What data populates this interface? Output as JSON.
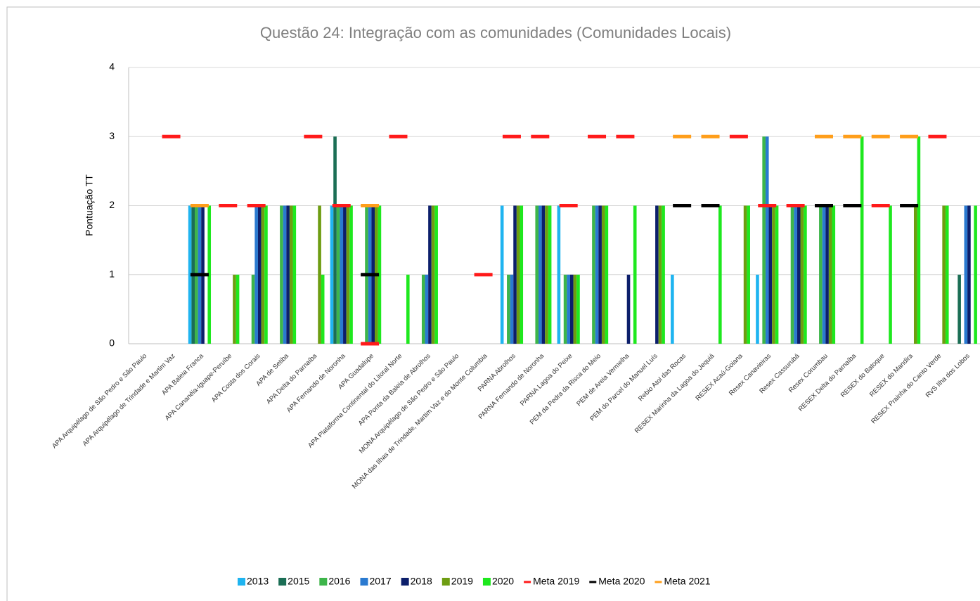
{
  "chart_data": {
    "type": "bar",
    "title": "Questão 24: Integração com as comunidades (Comunidades Locais)",
    "y_label": "Pontuação TT",
    "categories": [
      "APA Arquipélago de São Pedro e São Paulo",
      "APA Arquipélago de Trindade e Martim Vaz",
      "APA Baleia Franca",
      "APA Cananéia-Iguape-Peruíbe",
      "APA Costa dos Corais",
      "APA de Setiba",
      "APA Delta do Parnaíba",
      "APA Fernando de Noronha",
      "APA Guadalupe",
      "APA Plataforma Continental do Litoral Norte",
      "APA Ponta da Baleia de Abrolhos",
      "MONA Arquipélago de São Pedro e São Paulo",
      "MONA das Ilhas de Trindade, Martim Vaz e do Monte Columbia",
      "PARNA Abrolhos",
      "PARNA Fernando de Noronha",
      "PARNA Lagoa do Peixe",
      "PEM da Pedra da Risca do Meio",
      "PEM de Areia Vermelha",
      "PEM do Parcel do Manuel Luís",
      "Rebio Atol das Rocas",
      "RESEX Marinha da Lagoa do Jequiá",
      "RESEX Acaú-Goiana",
      "Resex Canavieiras",
      "Resex Cassurubá",
      "Resex Corumbau",
      "RESEX Delta do Parnaíba",
      "RESEX do Batoque",
      "RESEX do Mandira",
      "RESEX Prainha do Canto Verde",
      "RVS Ilha dos Lobos"
    ],
    "series": [
      {
        "name": "2013",
        "color": "#1fb4f0",
        "values": [
          null,
          null,
          2,
          null,
          null,
          null,
          null,
          2,
          null,
          null,
          null,
          null,
          null,
          2,
          null,
          2,
          null,
          null,
          null,
          1,
          null,
          null,
          1,
          null,
          null,
          null,
          null,
          null,
          null,
          null
        ]
      },
      {
        "name": "2015",
        "color": "#1b6e55",
        "values": [
          null,
          null,
          2,
          null,
          null,
          null,
          null,
          3,
          null,
          null,
          null,
          null,
          null,
          null,
          null,
          null,
          null,
          null,
          null,
          null,
          null,
          null,
          null,
          null,
          null,
          null,
          null,
          null,
          null,
          1
        ]
      },
      {
        "name": "2016",
        "color": "#3db54a",
        "values": [
          null,
          null,
          2,
          null,
          1,
          2,
          null,
          2,
          2,
          null,
          1,
          null,
          null,
          1,
          2,
          1,
          2,
          null,
          null,
          null,
          null,
          null,
          3,
          2,
          2,
          null,
          null,
          null,
          null,
          null
        ]
      },
      {
        "name": "2017",
        "color": "#2a7ad0",
        "values": [
          null,
          null,
          2,
          null,
          2,
          2,
          null,
          2,
          2,
          null,
          1,
          null,
          null,
          1,
          2,
          1,
          2,
          null,
          null,
          null,
          null,
          null,
          3,
          2,
          2,
          null,
          null,
          null,
          null,
          2
        ]
      },
      {
        "name": "2018",
        "color": "#0c1f6b",
        "values": [
          null,
          null,
          2,
          null,
          2,
          2,
          null,
          2,
          2,
          null,
          2,
          null,
          null,
          2,
          2,
          1,
          2,
          1,
          2,
          null,
          null,
          null,
          2,
          2,
          2,
          null,
          null,
          null,
          null,
          2
        ]
      },
      {
        "name": "2019",
        "color": "#6e9d12",
        "values": [
          null,
          null,
          null,
          1,
          2,
          2,
          2,
          2,
          2,
          null,
          2,
          null,
          null,
          2,
          2,
          1,
          2,
          null,
          2,
          null,
          null,
          2,
          2,
          2,
          2,
          null,
          null,
          2,
          2,
          null
        ]
      },
      {
        "name": "2020",
        "color": "#1ee81e",
        "values": [
          null,
          null,
          2,
          1,
          2,
          2,
          1,
          2,
          2,
          1,
          2,
          null,
          null,
          2,
          2,
          1,
          2,
          2,
          2,
          null,
          2,
          2,
          2,
          2,
          2,
          3,
          2,
          3,
          2,
          2
        ]
      },
      {
        "name": "Meta 2019",
        "color": "#ff1a1a",
        "marker": "dash",
        "values": [
          null,
          3,
          null,
          2,
          2,
          null,
          3,
          2,
          0,
          3,
          null,
          null,
          1,
          3,
          3,
          2,
          3,
          3,
          null,
          null,
          null,
          3,
          2,
          2,
          null,
          null,
          2,
          null,
          3,
          null
        ]
      },
      {
        "name": "Meta 2020",
        "color": "#000000",
        "marker": "dash",
        "values": [
          null,
          null,
          1,
          null,
          null,
          null,
          null,
          null,
          1,
          null,
          null,
          null,
          null,
          null,
          null,
          null,
          null,
          null,
          null,
          2,
          2,
          null,
          null,
          null,
          2,
          2,
          null,
          2,
          null,
          null
        ]
      },
      {
        "name": "Meta 2021",
        "color": "#ff9e1a",
        "marker": "dash",
        "values": [
          null,
          null,
          2,
          null,
          null,
          null,
          null,
          null,
          2,
          null,
          null,
          null,
          null,
          null,
          null,
          null,
          null,
          null,
          null,
          3,
          3,
          null,
          null,
          null,
          3,
          3,
          3,
          3,
          null,
          null
        ]
      }
    ],
    "ylim": [
      0,
      4
    ],
    "yticks": [
      0,
      1,
      2,
      3,
      4
    ],
    "grid": true,
    "legend": "bottom"
  }
}
